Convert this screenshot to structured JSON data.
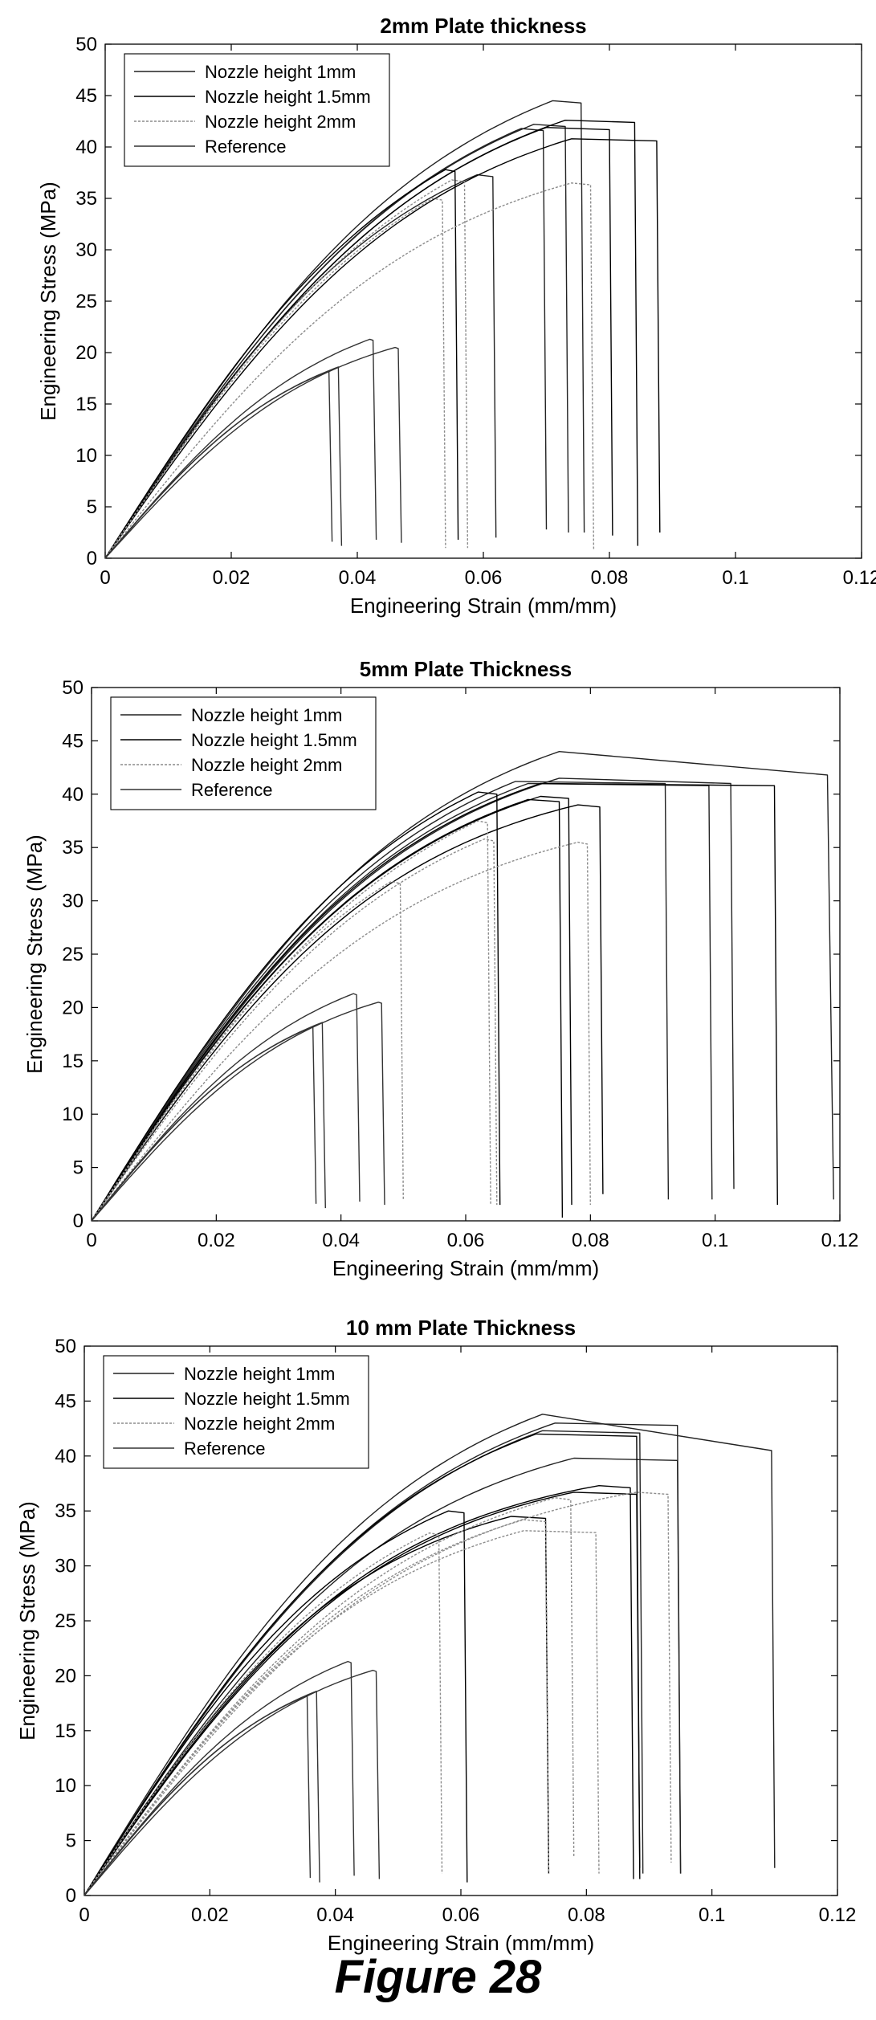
{
  "figure_caption": "Figure 28",
  "chart_data": [
    {
      "type": "line",
      "title": "2mm Plate thickness",
      "xlabel": "Engineering Strain (mm/mm)",
      "ylabel": "Engineering Stress (MPa)",
      "xlim": [
        0,
        0.12
      ],
      "ylim": [
        0,
        50
      ],
      "xticks": [
        "0",
        "0.02",
        "0.04",
        "0.06",
        "0.08",
        "0.1",
        "0.12"
      ],
      "yticks": [
        "0",
        "5",
        "10",
        "15",
        "20",
        "25",
        "30",
        "35",
        "40",
        "45",
        "50"
      ],
      "grid": false,
      "legend_position": "top-left",
      "series": [
        {
          "name": "Nozzle height 1mm",
          "color": "#222222",
          "dash": "",
          "curves": [
            {
              "modulus": 820,
              "peak_stress": 44.5,
              "peak_strain": 0.071,
              "fracture_strain": 0.076,
              "final_stress": 2.5
            },
            {
              "modulus": 800,
              "peak_stress": 42.2,
              "peak_strain": 0.068,
              "fracture_strain": 0.0735,
              "final_stress": 2.5
            },
            {
              "modulus": 790,
              "peak_stress": 41.8,
              "peak_strain": 0.066,
              "fracture_strain": 0.07,
              "final_stress": 2.8
            },
            {
              "modulus": 780,
              "peak_stress": 37.3,
              "peak_strain": 0.059,
              "fracture_strain": 0.062,
              "final_stress": 2.0
            }
          ]
        },
        {
          "name": "Nozzle height 1.5mm",
          "color": "#000000",
          "dash": "",
          "curves": [
            {
              "modulus": 800,
              "peak_stress": 42.6,
              "peak_strain": 0.073,
              "fracture_strain": 0.0845,
              "final_stress": 1.2
            },
            {
              "modulus": 790,
              "peak_stress": 41.9,
              "peak_strain": 0.07,
              "fracture_strain": 0.0805,
              "final_stress": 2.2
            },
            {
              "modulus": 780,
              "peak_stress": 40.8,
              "peak_strain": 0.074,
              "fracture_strain": 0.088,
              "final_stress": 2.5
            },
            {
              "modulus": 770,
              "peak_stress": 37.8,
              "peak_strain": 0.054,
              "fracture_strain": 0.056,
              "final_stress": 1.8
            }
          ]
        },
        {
          "name": "Nozzle height 2mm",
          "color": "#8c8c8c",
          "dash": "3,2",
          "curves": [
            {
              "modulus": 690,
              "peak_stress": 36.5,
              "peak_strain": 0.074,
              "fracture_strain": 0.0775,
              "final_stress": 0.8
            },
            {
              "modulus": 720,
              "peak_stress": 36.8,
              "peak_strain": 0.055,
              "fracture_strain": 0.0575,
              "final_stress": 1.0
            },
            {
              "modulus": 700,
              "peak_stress": 35.0,
              "peak_strain": 0.052,
              "fracture_strain": 0.054,
              "final_stress": 1.0
            }
          ]
        },
        {
          "name": "Reference",
          "color": "#333333",
          "dash": "",
          "curves": [
            {
              "modulus": 600,
              "peak_stress": 21.3,
              "peak_strain": 0.042,
              "fracture_strain": 0.043,
              "final_stress": 1.8
            },
            {
              "modulus": 580,
              "peak_stress": 20.5,
              "peak_strain": 0.046,
              "fracture_strain": 0.047,
              "final_stress": 1.5
            },
            {
              "modulus": 590,
              "peak_stress": 18.6,
              "peak_strain": 0.037,
              "fracture_strain": 0.0375,
              "final_stress": 1.2
            },
            {
              "modulus": 585,
              "peak_stress": 18.2,
              "peak_strain": 0.0355,
              "fracture_strain": 0.036,
              "final_stress": 1.6
            }
          ]
        }
      ]
    },
    {
      "type": "line",
      "title": "5mm Plate Thickness",
      "xlabel": "Engineering Strain (mm/mm)",
      "ylabel": "Engineering Stress (MPa)",
      "xlim": [
        0,
        0.12
      ],
      "ylim": [
        0,
        50
      ],
      "xticks": [
        "0",
        "0.02",
        "0.04",
        "0.06",
        "0.08",
        "0.1",
        "0.12"
      ],
      "yticks": [
        "0",
        "5",
        "10",
        "15",
        "20",
        "25",
        "30",
        "35",
        "40",
        "45",
        "50"
      ],
      "grid": false,
      "legend_position": "top-left",
      "series": [
        {
          "name": "Nozzle height 1mm",
          "color": "#222222",
          "dash": "",
          "curves": [
            {
              "modulus": 820,
              "peak_stress": 44.0,
              "peak_strain": 0.075,
              "fracture_strain": 0.119,
              "final_stress": 2.0,
              "plateau_end": 0.118,
              "plateau_stress": 41.8
            },
            {
              "modulus": 800,
              "peak_stress": 41.5,
              "peak_strain": 0.075,
              "fracture_strain": 0.103,
              "final_stress": 3.0,
              "plateau_end": 0.1025,
              "plateau_stress": 41.0
            },
            {
              "modulus": 790,
              "peak_stress": 41.2,
              "peak_strain": 0.068,
              "fracture_strain": 0.0925,
              "final_stress": 2.0
            },
            {
              "modulus": 790,
              "peak_stress": 41.0,
              "peak_strain": 0.07,
              "fracture_strain": 0.0995,
              "final_stress": 2.0
            }
          ]
        },
        {
          "name": "Nozzle height 1.5mm",
          "color": "#000000",
          "dash": "",
          "curves": [
            {
              "modulus": 800,
              "peak_stress": 41.0,
              "peak_strain": 0.072,
              "fracture_strain": 0.11,
              "final_stress": 1.5
            },
            {
              "modulus": 790,
              "peak_stress": 40.2,
              "peak_strain": 0.062,
              "fracture_strain": 0.0655,
              "final_stress": 1.5
            },
            {
              "modulus": 785,
              "peak_stress": 39.8,
              "peak_strain": 0.072,
              "fracture_strain": 0.077,
              "final_stress": 1.5
            },
            {
              "modulus": 780,
              "peak_stress": 39.5,
              "peak_strain": 0.07,
              "fracture_strain": 0.0755,
              "final_stress": 0.3
            },
            {
              "modulus": 775,
              "peak_stress": 39.0,
              "peak_strain": 0.078,
              "fracture_strain": 0.082,
              "final_stress": 2.5
            }
          ]
        },
        {
          "name": "Nozzle height 2mm",
          "color": "#8c8c8c",
          "dash": "3,2",
          "curves": [
            {
              "modulus": 710,
              "peak_stress": 37.5,
              "peak_strain": 0.062,
              "fracture_strain": 0.064,
              "final_stress": 1.5
            },
            {
              "modulus": 690,
              "peak_stress": 35.8,
              "peak_strain": 0.063,
              "fracture_strain": 0.065,
              "final_stress": 1.5
            },
            {
              "modulus": 670,
              "peak_stress": 35.5,
              "peak_strain": 0.078,
              "fracture_strain": 0.08,
              "final_stress": 1.5
            },
            {
              "modulus": 680,
              "peak_stress": 31.8,
              "peak_strain": 0.048,
              "fracture_strain": 0.05,
              "final_stress": 2.0
            }
          ]
        },
        {
          "name": "Reference",
          "color": "#333333",
          "dash": "",
          "curves": [
            {
              "modulus": 600,
              "peak_stress": 21.3,
              "peak_strain": 0.042,
              "fracture_strain": 0.043,
              "final_stress": 1.8
            },
            {
              "modulus": 580,
              "peak_stress": 20.5,
              "peak_strain": 0.046,
              "fracture_strain": 0.047,
              "final_stress": 1.5
            },
            {
              "modulus": 590,
              "peak_stress": 18.6,
              "peak_strain": 0.037,
              "fracture_strain": 0.0375,
              "final_stress": 1.2
            },
            {
              "modulus": 585,
              "peak_stress": 18.2,
              "peak_strain": 0.0355,
              "fracture_strain": 0.036,
              "final_stress": 1.6
            }
          ]
        }
      ]
    },
    {
      "type": "line",
      "title": "10 mm Plate Thickness",
      "xlabel": "Engineering Strain (mm/mm)",
      "ylabel": "Engineering Stress (MPa)",
      "xlim": [
        0,
        0.12
      ],
      "ylim": [
        0,
        50
      ],
      "xticks": [
        "0",
        "0.02",
        "0.04",
        "0.06",
        "0.08",
        "0.1",
        "0.12"
      ],
      "yticks": [
        "0",
        "5",
        "10",
        "15",
        "20",
        "25",
        "30",
        "35",
        "40",
        "45",
        "50"
      ],
      "grid": false,
      "legend_position": "top-left",
      "series": [
        {
          "name": "Nozzle height 1mm",
          "color": "#222222",
          "dash": "",
          "curves": [
            {
              "modulus": 820,
              "peak_stress": 43.8,
              "peak_strain": 0.073,
              "fracture_strain": 0.11,
              "final_stress": 2.5,
              "plateau_end": 0.1095,
              "plateau_stress": 40.5
            },
            {
              "modulus": 800,
              "peak_stress": 43.0,
              "peak_strain": 0.075,
              "fracture_strain": 0.095,
              "final_stress": 2.0
            },
            {
              "modulus": 790,
              "peak_stress": 42.3,
              "peak_strain": 0.073,
              "fracture_strain": 0.089,
              "final_stress": 2.0
            },
            {
              "modulus": 780,
              "peak_stress": 39.8,
              "peak_strain": 0.078,
              "fracture_strain": 0.095,
              "final_stress": 2.0
            }
          ]
        },
        {
          "name": "Nozzle height 1.5mm",
          "color": "#000000",
          "dash": "",
          "curves": [
            {
              "modulus": 800,
              "peak_stress": 42.0,
              "peak_strain": 0.072,
              "fracture_strain": 0.0885,
              "final_stress": 1.5
            },
            {
              "modulus": 780,
              "peak_stress": 37.3,
              "peak_strain": 0.082,
              "fracture_strain": 0.0875,
              "final_stress": 1.5
            },
            {
              "modulus": 760,
              "peak_stress": 36.7,
              "peak_strain": 0.078,
              "fracture_strain": 0.0885,
              "final_stress": 2.5
            },
            {
              "modulus": 770,
              "peak_stress": 35.0,
              "peak_strain": 0.058,
              "fracture_strain": 0.061,
              "final_stress": 1.2
            },
            {
              "modulus": 775,
              "peak_stress": 34.5,
              "peak_strain": 0.068,
              "fracture_strain": 0.074,
              "final_stress": 2.0
            }
          ]
        },
        {
          "name": "Nozzle height 2mm",
          "color": "#8c8c8c",
          "dash": "3,2",
          "curves": [
            {
              "modulus": 700,
              "peak_stress": 36.7,
              "peak_strain": 0.088,
              "fracture_strain": 0.0935,
              "final_stress": 3.0
            },
            {
              "modulus": 690,
              "peak_stress": 36.2,
              "peak_strain": 0.075,
              "fracture_strain": 0.078,
              "final_stress": 3.5
            },
            {
              "modulus": 680,
              "peak_stress": 34.2,
              "peak_strain": 0.07,
              "fracture_strain": 0.074,
              "final_stress": 2.0
            },
            {
              "modulus": 690,
              "peak_stress": 33.2,
              "peak_strain": 0.07,
              "fracture_strain": 0.082,
              "final_stress": 2.0
            },
            {
              "modulus": 700,
              "peak_stress": 33.0,
              "peak_strain": 0.055,
              "fracture_strain": 0.057,
              "final_stress": 2.0
            }
          ]
        },
        {
          "name": "Reference",
          "color": "#333333",
          "dash": "",
          "curves": [
            {
              "modulus": 600,
              "peak_stress": 21.3,
              "peak_strain": 0.042,
              "fracture_strain": 0.043,
              "final_stress": 1.8
            },
            {
              "modulus": 580,
              "peak_stress": 20.5,
              "peak_strain": 0.046,
              "fracture_strain": 0.047,
              "final_stress": 1.5
            },
            {
              "modulus": 590,
              "peak_stress": 18.6,
              "peak_strain": 0.037,
              "fracture_strain": 0.0375,
              "final_stress": 1.2
            },
            {
              "modulus": 585,
              "peak_stress": 18.2,
              "peak_strain": 0.0355,
              "fracture_strain": 0.036,
              "final_stress": 1.6
            }
          ]
        }
      ]
    }
  ]
}
